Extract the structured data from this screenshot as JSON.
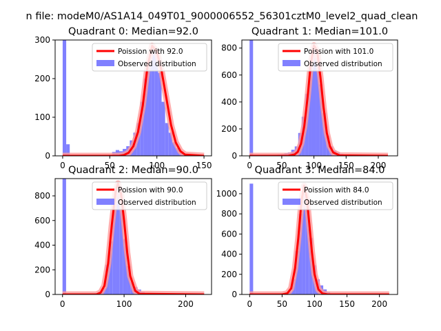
{
  "figure": {
    "suptitle": "n file: modeM0/AS1A14_049T01_9000006552_56301cztM0_level2_quad_clean"
  },
  "colors": {
    "hist": "#8080ff",
    "poisson": "#ff0000",
    "poisson_glow": "#ff9a9a"
  },
  "chart_data": [
    {
      "type": "bar",
      "title": "Quadrant 0: Median=92.0",
      "xlim": [
        -8,
        158
      ],
      "ylim": [
        0,
        300
      ],
      "xticks": [
        0,
        50,
        100,
        150
      ],
      "yticks": [
        0,
        100,
        200,
        300
      ],
      "bin_width": 3.75,
      "legend": {
        "location": "upper-right",
        "entries": [
          "Poission with 92.0",
          "Observed distribution"
        ]
      },
      "histogram": {
        "name": "Observed distribution",
        "bins": [
          0,
          3.75,
          7.5,
          11.25,
          15,
          18.75,
          22.5,
          26.25,
          30,
          33.75,
          37.5,
          41.25,
          45,
          48.75,
          52.5,
          56.25,
          60,
          63.75,
          67.5,
          71.25,
          75,
          78.75,
          82.5,
          86.25,
          90,
          93.75,
          97.5,
          101.25,
          105,
          108.75,
          112.5,
          116.25,
          120,
          123.75,
          127.5,
          131.25,
          135,
          138.75,
          142.5,
          146.25
        ],
        "counts": [
          300,
          30,
          0,
          0,
          0,
          0,
          0,
          0,
          0,
          0,
          0,
          0,
          0,
          0,
          10,
          15,
          12,
          18,
          25,
          40,
          60,
          85,
          140,
          200,
          245,
          285,
          270,
          215,
          140,
          85,
          60,
          35,
          20,
          12,
          6,
          3,
          2,
          1,
          0,
          0
        ]
      },
      "poisson": {
        "name": "Poission with 92.0",
        "x": [
          0,
          60,
          65,
          70,
          75,
          80,
          85,
          90,
          95,
          100,
          105,
          110,
          115,
          120,
          125,
          130,
          150
        ],
        "y": [
          0,
          0,
          2,
          8,
          25,
          62,
          130,
          230,
          285,
          270,
          220,
          150,
          80,
          35,
          12,
          3,
          0
        ]
      }
    },
    {
      "type": "bar",
      "title": "Quadrant 1: Median=101.0",
      "xlim": [
        -12,
        230
      ],
      "ylim": [
        0,
        860
      ],
      "xticks": [
        0,
        50,
        100,
        150,
        200
      ],
      "yticks": [
        0,
        200,
        400,
        600,
        800
      ],
      "bin_width": 5.4,
      "legend": {
        "location": "upper-right",
        "entries": [
          "Poission with 101.0",
          "Observed distribution"
        ]
      },
      "histogram": {
        "name": "Observed distribution",
        "bins": [
          0,
          5.4,
          10.8,
          16.2,
          21.6,
          27,
          32.4,
          37.8,
          43.2,
          48.6,
          54,
          59.4,
          64.8,
          70.2,
          75.6,
          81,
          86.4,
          91.8,
          97.2,
          102.6,
          108,
          113.4,
          118.8,
          124.2,
          129.6,
          135,
          140.4,
          145.8,
          151.2,
          156.6,
          162,
          167.4,
          172.8,
          178.2,
          183.6,
          189,
          194.4,
          199.8,
          205.2,
          210.6
        ],
        "counts": [
          860,
          0,
          0,
          0,
          0,
          0,
          0,
          8,
          10,
          12,
          20,
          25,
          45,
          70,
          170,
          290,
          460,
          660,
          810,
          730,
          530,
          320,
          150,
          70,
          40,
          25,
          15,
          8,
          5,
          3,
          2,
          0,
          0,
          0,
          0,
          0,
          0,
          0,
          0,
          0
        ]
      },
      "poisson": {
        "name": "Poission with 101.0",
        "x": [
          0,
          60,
          70,
          75,
          80,
          85,
          90,
          95,
          100,
          105,
          110,
          115,
          120,
          125,
          130,
          140,
          215
        ],
        "y": [
          0,
          0,
          10,
          30,
          90,
          220,
          430,
          680,
          820,
          780,
          590,
          360,
          170,
          70,
          25,
          3,
          0
        ]
      }
    },
    {
      "type": "bar",
      "title": "Quadrant 2: Median=90.0",
      "xlim": [
        -12,
        242
      ],
      "ylim": [
        0,
        940
      ],
      "xticks": [
        0,
        100,
        200
      ],
      "yticks": [
        0,
        200,
        400,
        600,
        800
      ],
      "bin_width": 5.8,
      "legend": {
        "location": "upper-right",
        "entries": [
          "Poission with 90.0",
          "Observed distribution"
        ]
      },
      "histogram": {
        "name": "Observed distribution",
        "bins": [
          0,
          5.8,
          11.6,
          17.4,
          23.2,
          29,
          34.8,
          40.6,
          46.4,
          52.2,
          58,
          63.8,
          69.6,
          75.4,
          81.2,
          87,
          92.8,
          98.6,
          104.4,
          110.2,
          116,
          121.8,
          127.6,
          133.4,
          139.2,
          145,
          150.8,
          156.6,
          162.4,
          168.2,
          174,
          179.8,
          185.6,
          191.4,
          197.2,
          203,
          208.8,
          214.6,
          220.4,
          226.2
        ],
        "counts": [
          940,
          0,
          0,
          0,
          0,
          0,
          0,
          0,
          5,
          10,
          20,
          50,
          240,
          430,
          720,
          880,
          700,
          450,
          230,
          100,
          60,
          40,
          20,
          10,
          5,
          2,
          0,
          0,
          0,
          0,
          0,
          0,
          0,
          0,
          0,
          0,
          0,
          0,
          0,
          0
        ]
      },
      "poisson": {
        "name": "Poission with 90.0",
        "x": [
          0,
          55,
          62,
          68,
          74,
          80,
          86,
          90,
          95,
          100,
          105,
          110,
          118,
          125,
          230
        ],
        "y": [
          0,
          0,
          15,
          70,
          250,
          560,
          830,
          900,
          820,
          600,
          340,
          150,
          30,
          5,
          0
        ]
      }
    },
    {
      "type": "bar",
      "title": "Quadrant 3: Median=84.0",
      "xlim": [
        -12,
        228
      ],
      "ylim": [
        0,
        1150
      ],
      "xticks": [
        0,
        50,
        100,
        150,
        200
      ],
      "yticks": [
        0,
        200,
        400,
        600,
        800,
        1000
      ],
      "bin_width": 5.4,
      "legend": {
        "location": "upper-right",
        "entries": [
          "Poission with 84.0",
          "Observed distribution"
        ]
      },
      "histogram": {
        "name": "Observed distribution",
        "bins": [
          0,
          5.4,
          10.8,
          16.2,
          21.6,
          27,
          32.4,
          37.8,
          43.2,
          48.6,
          54,
          59.4,
          64.8,
          70.2,
          75.6,
          81,
          86.4,
          91.8,
          97.2,
          102.6,
          108,
          113.4,
          118.8,
          124.2,
          129.6,
          135,
          140.4,
          145.8,
          151.2,
          156.6,
          162,
          167.4,
          172.8,
          178.2,
          183.6,
          189,
          194.4,
          199.8,
          205.2,
          210.6
        ],
        "counts": [
          1100,
          0,
          0,
          0,
          0,
          0,
          0,
          0,
          0,
          5,
          10,
          30,
          150,
          430,
          800,
          1080,
          900,
          560,
          290,
          150,
          90,
          50,
          25,
          10,
          5,
          2,
          0,
          0,
          0,
          0,
          0,
          0,
          0,
          0,
          0,
          0,
          0,
          0,
          0,
          0
        ]
      },
      "poisson": {
        "name": "Poission with 84.0",
        "x": [
          0,
          50,
          58,
          64,
          70,
          75,
          80,
          84,
          88,
          92,
          96,
          100,
          106,
          112,
          120,
          215
        ],
        "y": [
          0,
          0,
          10,
          60,
          260,
          560,
          930,
          1080,
          960,
          700,
          420,
          200,
          50,
          10,
          0,
          0
        ]
      }
    }
  ]
}
